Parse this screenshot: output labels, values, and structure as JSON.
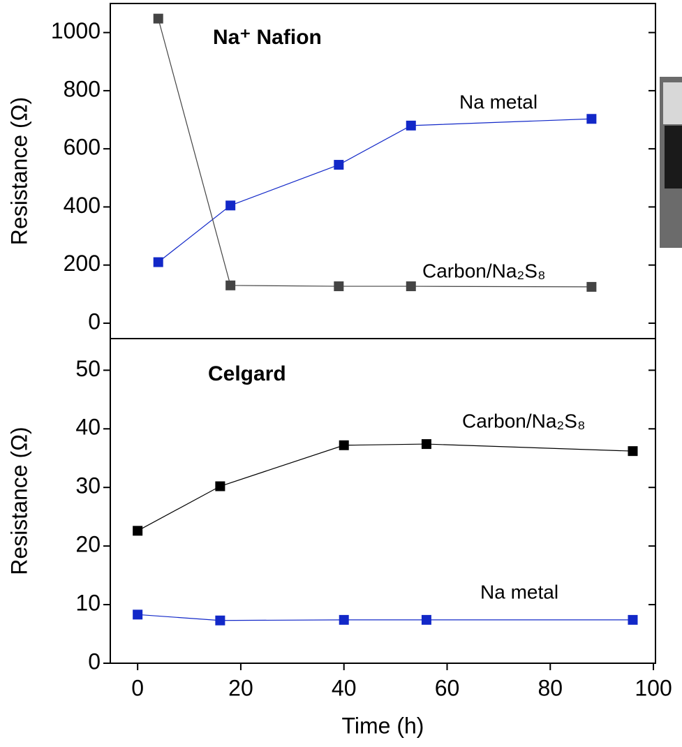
{
  "chart_data": [
    {
      "type": "line",
      "title": "Na⁺ Nafion",
      "y_label": "Resistance (Ω)",
      "xlim": [
        -5.3,
        100.4
      ],
      "ylim": [
        -53,
        1100
      ],
      "yticks": [
        0,
        200,
        400,
        600,
        800,
        1000
      ],
      "series": [
        {
          "name": "Na metal",
          "color": "#1228c8",
          "x": [
            4,
            18,
            39,
            53,
            88
          ],
          "values": [
            210,
            405,
            545,
            680,
            703
          ]
        },
        {
          "name": "Carbon/Na₂S₈",
          "color": "#444444",
          "x": [
            4,
            18,
            39,
            53,
            88
          ],
          "values": [
            1048,
            130,
            127,
            127,
            125
          ]
        }
      ]
    },
    {
      "type": "line",
      "title": "Celgard",
      "y_label": "Resistance (Ω)",
      "x_label": "Time (h)",
      "xlim": [
        -5.3,
        100.4
      ],
      "ylim": [
        0,
        55.4
      ],
      "yticks": [
        0,
        10,
        20,
        30,
        40,
        50
      ],
      "xticks": [
        0,
        20,
        40,
        60,
        80,
        100
      ],
      "series": [
        {
          "name": "Carbon/Na₂S₈",
          "color": "#000000",
          "x": [
            0,
            16,
            40,
            56,
            96
          ],
          "values": [
            22.6,
            30.2,
            37.2,
            37.4,
            36.2
          ]
        },
        {
          "name": "Na metal",
          "color": "#1228c8",
          "x": [
            0,
            16,
            40,
            56,
            96
          ],
          "values": [
            8.3,
            7.3,
            7.4,
            7.4,
            7.4
          ]
        }
      ]
    }
  ]
}
